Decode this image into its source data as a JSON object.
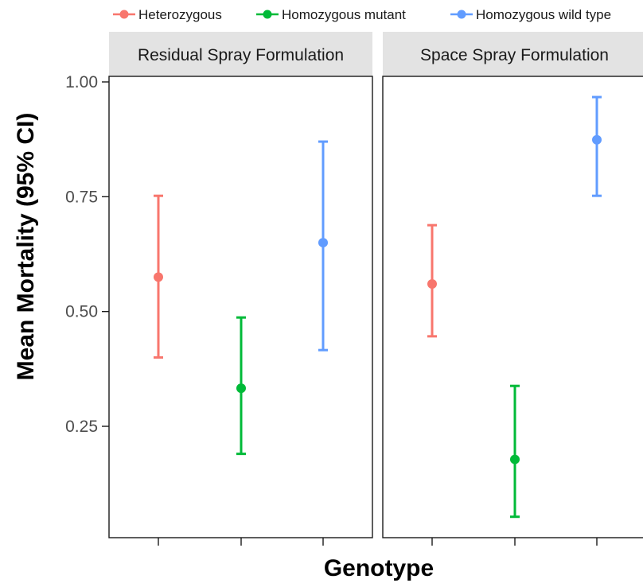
{
  "chart_data": {
    "type": "scatter",
    "subtype": "point-errorbar",
    "xlabel": "Genotype",
    "ylabel": "Mean Mortality (95% CI)",
    "ylim": [
      0.04,
      1.04
    ],
    "yticks": [
      0.25,
      0.5,
      0.75,
      1.0
    ],
    "ytick_labels": [
      "0.25",
      "0.50",
      "0.75",
      "1.00"
    ],
    "categories": [
      "Heterozygous",
      "Homozygous mutant",
      "Homozygous wild type"
    ],
    "x_tick_labels_shown": false,
    "grid": false,
    "legend_position": "top",
    "legend": [
      {
        "name": "Heterozygous",
        "color": "#F8766D"
      },
      {
        "name": "Homozygous mutant",
        "color": "#00BA38"
      },
      {
        "name": "Homozygous wild type",
        "color": "#619CFF"
      }
    ],
    "panels": [
      {
        "title": "Residual Spray Formulation",
        "points": [
          {
            "category": "Heterozygous",
            "mean": 0.575,
            "lower": 0.4,
            "upper": 0.752
          },
          {
            "category": "Homozygous mutant",
            "mean": 0.333,
            "lower": 0.19,
            "upper": 0.487
          },
          {
            "category": "Homozygous wild type",
            "mean": 0.65,
            "lower": 0.416,
            "upper": 0.87
          }
        ]
      },
      {
        "title": "Space Spray Formulation",
        "points": [
          {
            "category": "Heterozygous",
            "mean": 0.56,
            "lower": 0.446,
            "upper": 0.688
          },
          {
            "category": "Homozygous mutant",
            "mean": 0.178,
            "lower": 0.053,
            "upper": 0.338
          },
          {
            "category": "Homozygous wild type",
            "mean": 0.874,
            "lower": 0.752,
            "upper": 0.967
          }
        ]
      }
    ]
  }
}
